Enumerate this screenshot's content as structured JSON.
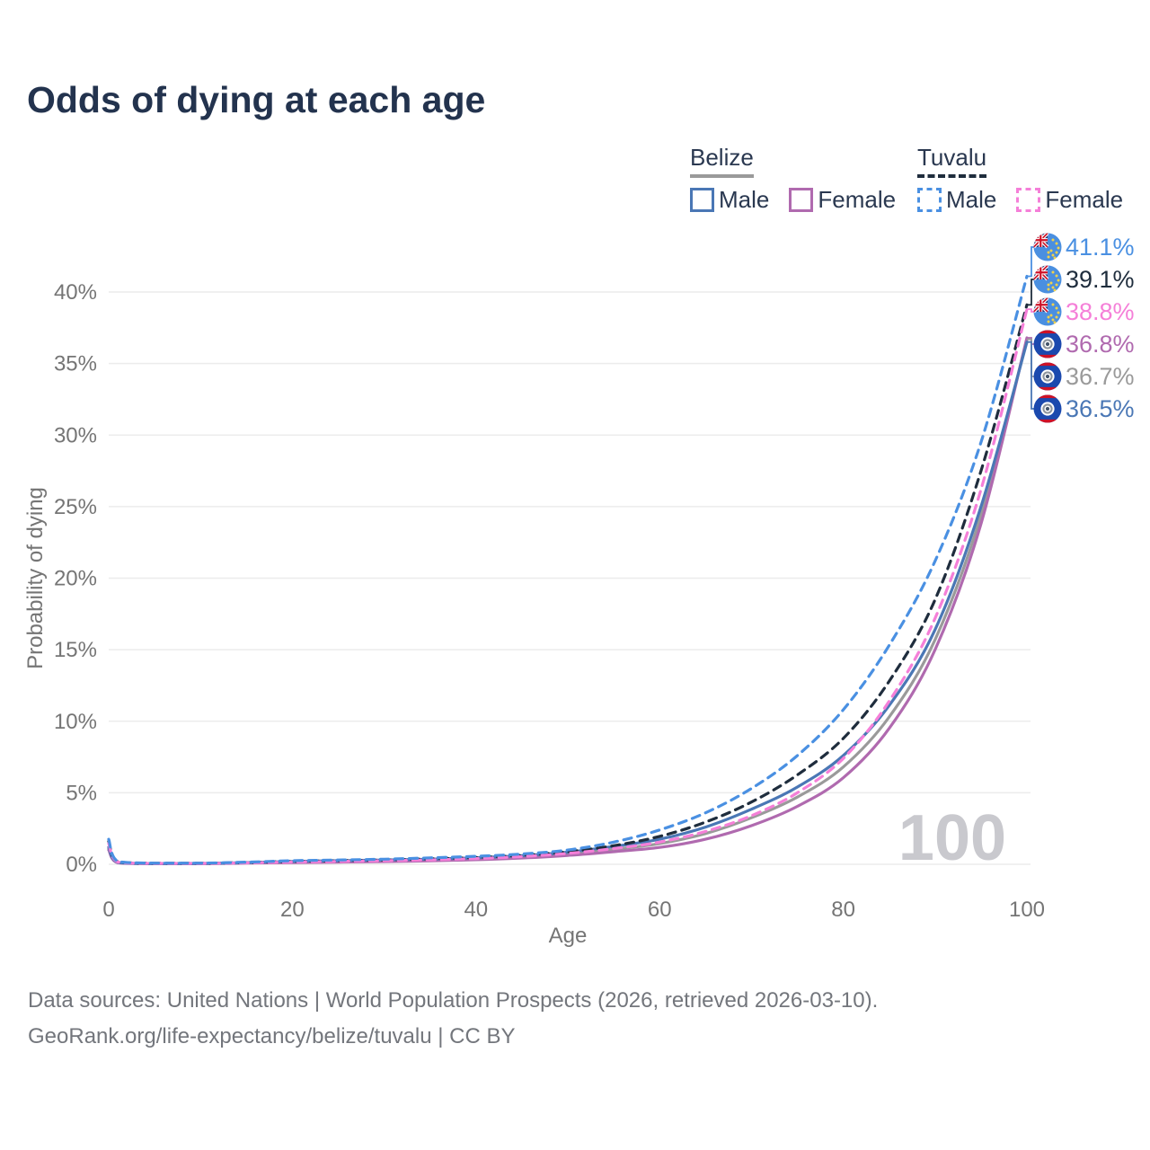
{
  "title": "Odds of dying at each age",
  "legend": {
    "groups": [
      {
        "label": "Belize",
        "line_style": "solid",
        "underline_color": "#9a9a9a",
        "items": [
          {
            "label": "Male",
            "color": "#4a77b5"
          },
          {
            "label": "Female",
            "color": "#b06aaf"
          }
        ]
      },
      {
        "label": "Tuvalu",
        "line_style": "dashed",
        "underline_color": "#1f2d3d",
        "items": [
          {
            "label": "Male",
            "color": "#4a90e2"
          },
          {
            "label": "Female",
            "color": "#f57fd8"
          }
        ]
      }
    ]
  },
  "chart_data": {
    "type": "line",
    "title": "Odds of dying at each age",
    "xlabel": "Age",
    "ylabel": "Probability of dying",
    "xlim": [
      0,
      100
    ],
    "ylim_percent": [
      0,
      40
    ],
    "xticks": [
      0,
      20,
      40,
      60,
      80,
      100
    ],
    "yticks": [
      "0%",
      "5%",
      "10%",
      "15%",
      "20%",
      "25%",
      "30%",
      "35%",
      "40%"
    ],
    "grid": "horizontal",
    "watermark": "100",
    "x": [
      0,
      1,
      5,
      10,
      15,
      20,
      25,
      30,
      35,
      40,
      45,
      50,
      55,
      60,
      65,
      70,
      75,
      80,
      85,
      90,
      95,
      100
    ],
    "series": [
      {
        "key": "belize-both",
        "name": "Belize (both sexes)",
        "country": "Belize",
        "sex": "Both",
        "color": "#9a9a9a",
        "dash": "solid",
        "flag": "belize",
        "end_label": "36.7%",
        "values": [
          1.1,
          0.12,
          0.05,
          0.05,
          0.1,
          0.16,
          0.2,
          0.24,
          0.3,
          0.39,
          0.52,
          0.73,
          1.05,
          1.45,
          2.15,
          3.25,
          4.7,
          6.8,
          10.3,
          15.7,
          24.4,
          36.7
        ]
      },
      {
        "key": "belize-female",
        "name": "Belize Female",
        "country": "Belize",
        "sex": "Female",
        "color": "#b06aaf",
        "dash": "solid",
        "flag": "belize",
        "end_label": "36.8%",
        "values": [
          1.0,
          0.1,
          0.04,
          0.04,
          0.08,
          0.12,
          0.15,
          0.19,
          0.24,
          0.32,
          0.44,
          0.62,
          0.88,
          1.18,
          1.75,
          2.7,
          4.05,
          6.05,
          9.5,
          15.0,
          23.8,
          36.8
        ]
      },
      {
        "key": "belize-male",
        "name": "Belize Male",
        "country": "Belize",
        "sex": "Male",
        "color": "#4a77b5",
        "dash": "solid",
        "flag": "belize",
        "end_label": "36.5%",
        "values": [
          1.2,
          0.13,
          0.05,
          0.06,
          0.12,
          0.2,
          0.25,
          0.3,
          0.36,
          0.46,
          0.6,
          0.85,
          1.25,
          1.75,
          2.6,
          3.85,
          5.4,
          7.6,
          11.1,
          16.4,
          25.0,
          36.5
        ]
      },
      {
        "key": "tuvalu-both",
        "name": "Tuvalu (both sexes)",
        "country": "Tuvalu",
        "sex": "Both",
        "color": "#1f2d3d",
        "dash": "dashed",
        "flag": "tuvalu",
        "end_label": "39.1%",
        "values": [
          1.6,
          0.18,
          0.07,
          0.07,
          0.12,
          0.2,
          0.25,
          0.3,
          0.38,
          0.48,
          0.62,
          0.88,
          1.3,
          1.95,
          2.95,
          4.35,
          6.25,
          8.8,
          12.8,
          18.5,
          27.5,
          39.1
        ]
      },
      {
        "key": "tuvalu-female",
        "name": "Tuvalu Female",
        "country": "Tuvalu",
        "sex": "Female",
        "color": "#f57fd8",
        "dash": "dashed",
        "flag": "tuvalu",
        "end_label": "38.8%",
        "values": [
          1.45,
          0.16,
          0.06,
          0.06,
          0.1,
          0.16,
          0.2,
          0.25,
          0.31,
          0.4,
          0.54,
          0.76,
          1.1,
          1.55,
          2.3,
          3.4,
          5.0,
          7.4,
          11.4,
          17.2,
          26.2,
          38.8
        ]
      },
      {
        "key": "tuvalu-male",
        "name": "Tuvalu Male",
        "country": "Tuvalu",
        "sex": "Male",
        "color": "#4a90e2",
        "dash": "dashed",
        "flag": "tuvalu",
        "end_label": "41.1%",
        "values": [
          1.75,
          0.2,
          0.08,
          0.08,
          0.15,
          0.25,
          0.3,
          0.36,
          0.45,
          0.56,
          0.72,
          1.0,
          1.55,
          2.4,
          3.6,
          5.3,
          7.6,
          10.8,
          15.3,
          21.2,
          29.5,
          41.1
        ]
      }
    ],
    "colors": {
      "grid": "#ececec",
      "axis_text": "#757575",
      "watermark": "#c9c9ce",
      "flag_tuvalu_field": "#4a8fe0",
      "flag_belize_field": "#1b49ae",
      "flag_red": "#ce1126"
    }
  },
  "footer": {
    "line1": "Data sources: United Nations | World Population Prospects (2026, retrieved 2026-03-10).",
    "line2": "GeoRank.org/life-expectancy/belize/tuvalu | CC BY"
  }
}
